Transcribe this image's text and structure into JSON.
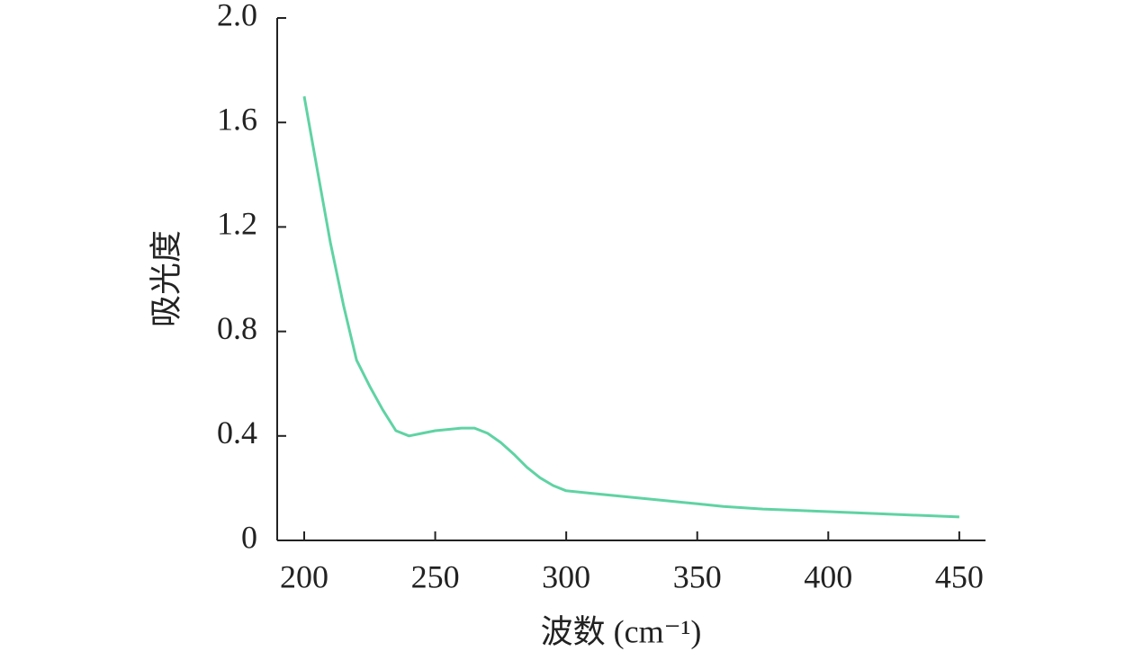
{
  "chart_data": {
    "type": "line",
    "x_label": "波数 (cm⁻¹)",
    "y_label": "吸光度",
    "x": [
      200,
      205,
      210,
      215,
      220,
      225,
      230,
      235,
      240,
      245,
      250,
      260,
      265,
      270,
      275,
      280,
      285,
      290,
      295,
      300,
      310,
      320,
      330,
      340,
      350,
      360,
      375,
      400,
      425,
      450
    ],
    "series": [
      {
        "color": "#5fd3a3",
        "values": [
          1.7,
          1.42,
          1.14,
          0.9,
          0.69,
          0.59,
          0.5,
          0.42,
          0.4,
          0.41,
          0.42,
          0.43,
          0.43,
          0.41,
          0.375,
          0.33,
          0.28,
          0.24,
          0.21,
          0.19,
          0.18,
          0.17,
          0.16,
          0.15,
          0.14,
          0.13,
          0.12,
          0.11,
          0.1,
          0.09
        ]
      }
    ],
    "xlim": [
      189.7,
      460
    ],
    "ylim": [
      0,
      2
    ],
    "xticks": [
      200,
      250,
      300,
      350,
      400,
      450
    ],
    "yticks": [
      0,
      0.4,
      0.8,
      1.2,
      1.6,
      {
        "value": 2,
        "label": "2.0"
      }
    ]
  }
}
